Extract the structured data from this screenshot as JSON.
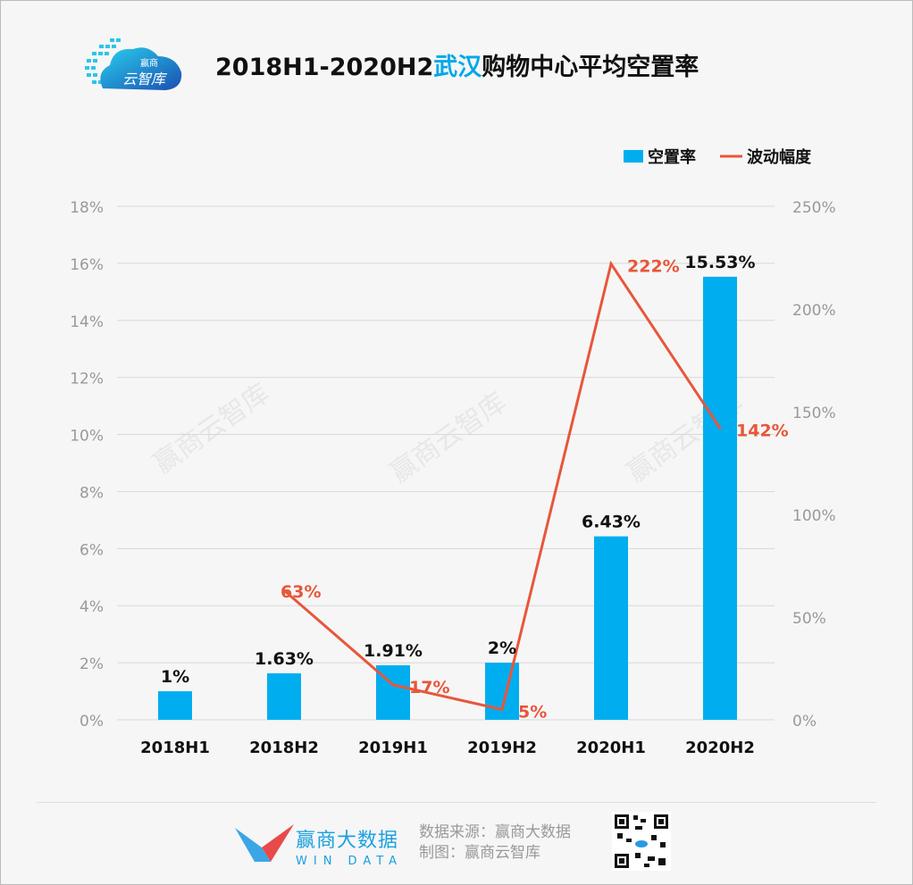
{
  "header": {
    "title_prefix": "2018H1-2020H2",
    "title_highlight": "武汉",
    "title_suffix": "购物中心平均空置率",
    "logo_text_top": "赢商",
    "logo_text_bottom": "云智库"
  },
  "watermark": "赢商云智库",
  "colors": {
    "bar": "#00aeef",
    "line": "#e8563a",
    "highlight": "#00a8e8"
  },
  "chart_data": {
    "type": "bar+line",
    "categories": [
      "2018H1",
      "2018H2",
      "2019H1",
      "2019H2",
      "2020H1",
      "2020H2"
    ],
    "series": [
      {
        "name": "空置率",
        "type": "bar",
        "axis": "left",
        "values": [
          1,
          1.63,
          1.91,
          2,
          6.43,
          15.53
        ],
        "labels": [
          "1%",
          "1.63%",
          "1.91%",
          "2%",
          "6.43%",
          "15.53%"
        ]
      },
      {
        "name": "波动幅度",
        "type": "line",
        "axis": "right",
        "values": [
          null,
          63,
          17,
          5,
          222,
          142
        ],
        "labels": [
          "",
          "63%",
          "17%",
          "5%",
          "222%",
          "142%"
        ]
      }
    ],
    "left_axis": {
      "ylim": [
        0,
        18
      ],
      "ticks": [
        "0%",
        "2%",
        "4%",
        "6%",
        "8%",
        "10%",
        "12%",
        "14%",
        "16%",
        "18%"
      ]
    },
    "right_axis": {
      "ylim": [
        0,
        250
      ],
      "ticks": [
        "0%",
        "50%",
        "100%",
        "150%",
        "200%",
        "250%"
      ]
    },
    "grid": true,
    "legend": "top-right"
  },
  "footer": {
    "brand_cn": "赢商大数据",
    "brand_en": "WIN DATA",
    "source": "数据来源：赢商大数据",
    "made_by": "制图：赢商云智库"
  }
}
